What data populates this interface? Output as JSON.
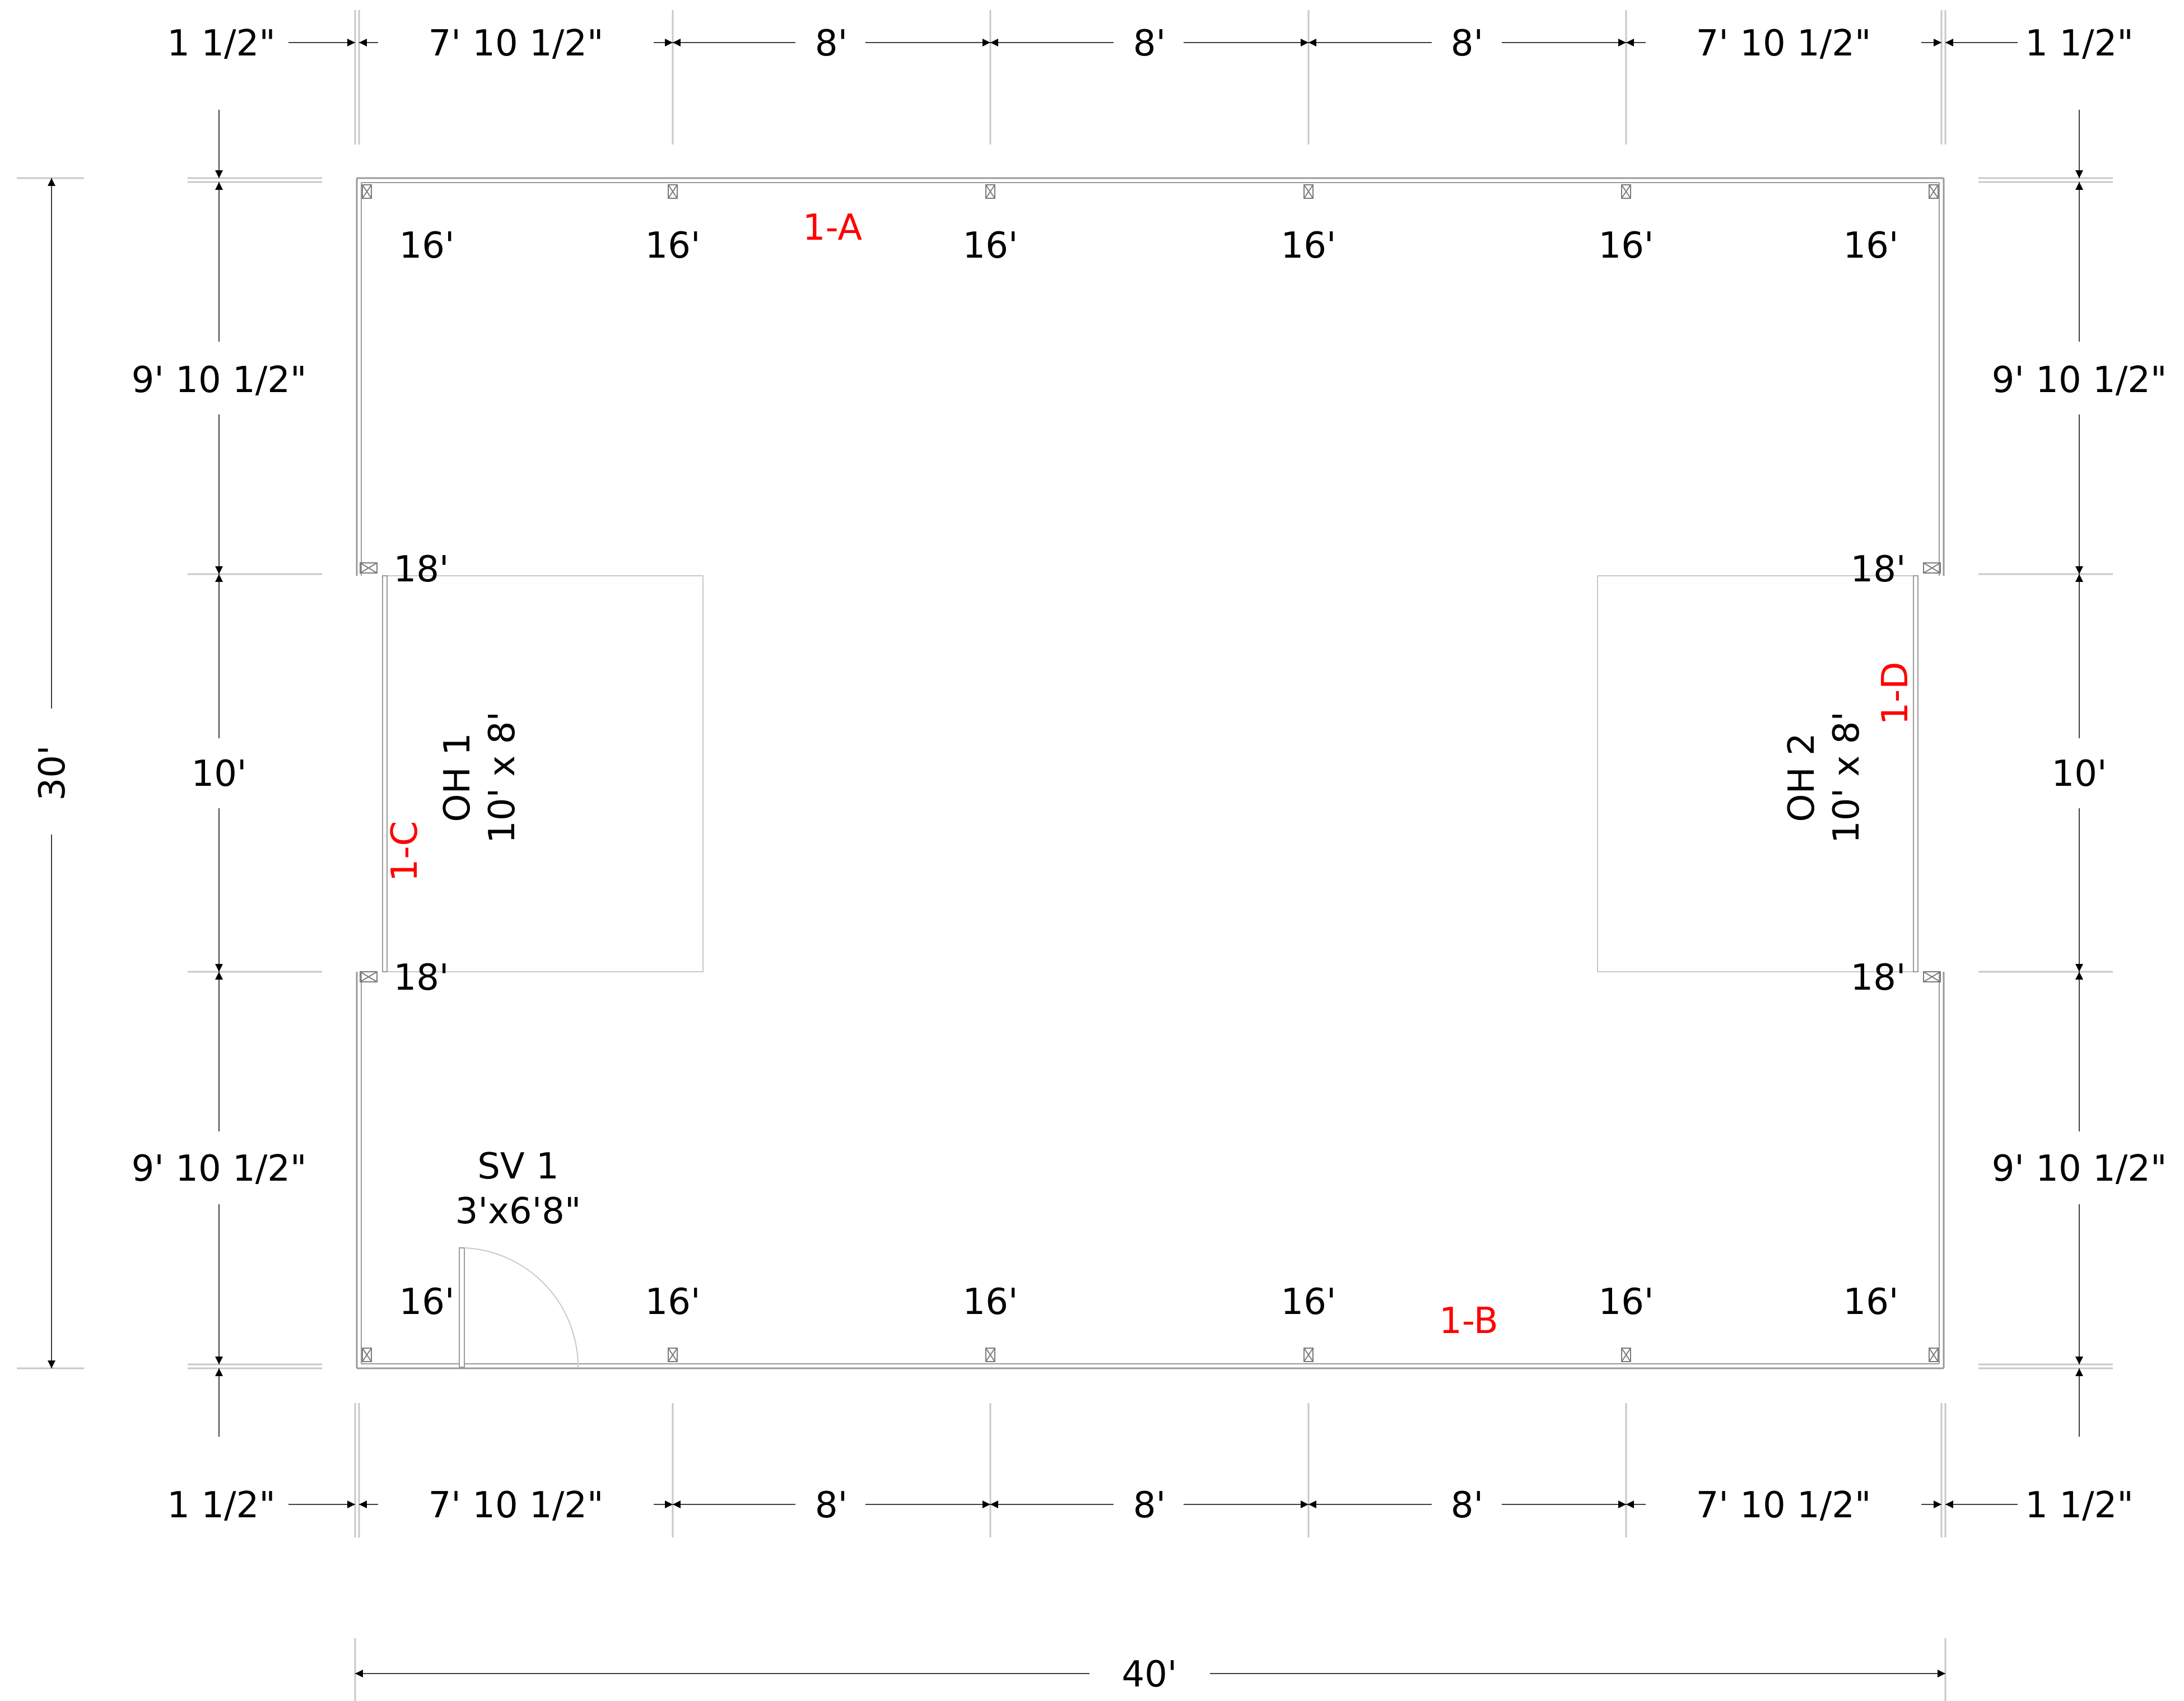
{
  "colors": {
    "line": "#000000",
    "wall": "#9a9a9a",
    "thin": "#c8c8c8",
    "wall_label": "#ff0000",
    "background": "#ffffff"
  },
  "dimensions": {
    "top": [
      "1 1/2\"",
      "7' 10 1/2\"",
      "8'",
      "8'",
      "8'",
      "7' 10 1/2\"",
      "1 1/2\""
    ],
    "bottom": [
      "1 1/2\"",
      "7' 10 1/2\"",
      "8'",
      "8'",
      "8'",
      "7' 10 1/2\"",
      "1 1/2\""
    ],
    "left": [
      "9' 10 1/2\"",
      "10'",
      "9' 10 1/2\""
    ],
    "right": [
      "9' 10 1/2\"",
      "10'",
      "9' 10 1/2\""
    ],
    "overall_width": "40'",
    "overall_depth": "30'"
  },
  "posts": {
    "top": [
      "16'",
      "16'",
      "16'",
      "16'",
      "16'",
      "16'"
    ],
    "bottom": [
      "16'",
      "16'",
      "16'",
      "16'",
      "16'",
      "16'"
    ],
    "left": [
      "18'",
      "18'"
    ],
    "right": [
      "18'",
      "18'"
    ]
  },
  "walls": {
    "a": "1-A",
    "b": "1-B",
    "c": "1-C",
    "d": "1-D"
  },
  "openings": {
    "oh1": {
      "name": "OH 1",
      "size": "10' x 8'"
    },
    "oh2": {
      "name": "OH 2",
      "size": "10' x 8'"
    },
    "sv1": {
      "name": "SV 1",
      "size": "3'x6'8\""
    }
  }
}
